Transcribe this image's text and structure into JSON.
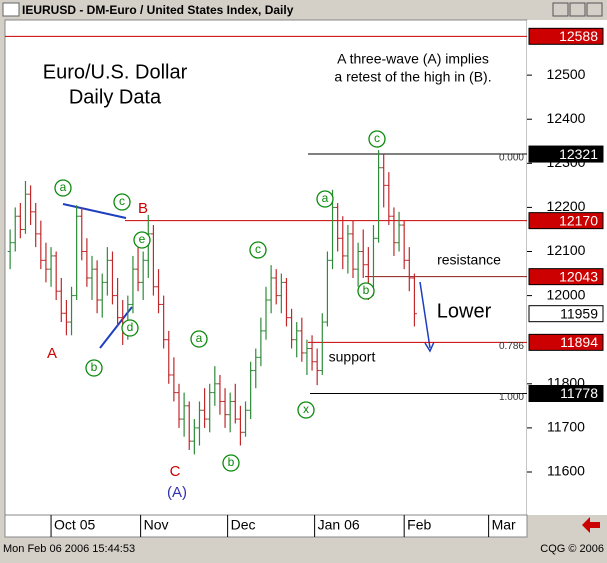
{
  "window": {
    "title": "IEURUSD - DM-Euro / United States Index, Daily",
    "status": "Mon Feb 06 2006 15:44:53",
    "copyright": "CQG © 2006"
  },
  "chart_data": {
    "type": "ohlc",
    "open": [
      12100,
      12120,
      12180,
      12150,
      12230,
      12190,
      12140,
      12080,
      12060,
      12090,
      12010,
      11960,
      11940,
      12000,
      12180,
      12100,
      12040,
      12060,
      11990,
      12030,
      12080,
      12000,
      11950,
      11920,
      11980,
      12060,
      12030,
      12080,
      12140,
      12020,
      11980,
      11900,
      11820,
      11780,
      11720,
      11750,
      11670,
      11700,
      11740,
      11720,
      11780,
      11800,
      11760,
      11730,
      11760,
      11720,
      11690,
      11740,
      11830,
      11860,
      11920,
      11990,
      12040,
      12000,
      12030,
      11950,
      11900,
      11920,
      11870,
      11880,
      11850,
      11830,
      11940,
      12080,
      12200,
      12130,
      12090,
      12140,
      12060,
      12100,
      12070,
      12020,
      12130,
      12290,
      12250,
      12180,
      12120,
      12160,
      12080,
      12040
    ],
    "high": [
      12150,
      12200,
      12210,
      12260,
      12250,
      12210,
      12170,
      12120,
      12110,
      12100,
      12040,
      11990,
      12020,
      12205,
      12200,
      12130,
      12090,
      12080,
      12050,
      12110,
      12100,
      12040,
      11990,
      12000,
      12090,
      12120,
      12100,
      12183,
      12160,
      12060,
      12000,
      11920,
      11860,
      11800,
      11780,
      11760,
      11720,
      11760,
      11790,
      11800,
      11840,
      11820,
      11790,
      11780,
      11800,
      11750,
      11760,
      11850,
      11880,
      11950,
      12020,
      12069,
      12060,
      12050,
      12040,
      11970,
      11940,
      11950,
      11900,
      11910,
      11880,
      11960,
      12100,
      12240,
      12210,
      12180,
      12160,
      12170,
      12120,
      12150,
      12110,
      12160,
      12330,
      12321,
      12280,
      12200,
      12190,
      12170,
      12110,
      12050
    ],
    "low": [
      12060,
      12100,
      12130,
      12140,
      12160,
      12110,
      12060,
      12030,
      12020,
      11990,
      11940,
      11910,
      11910,
      11990,
      12080,
      12020,
      11990,
      11960,
      11950,
      12000,
      11980,
      11930,
      11888,
      11900,
      11960,
      12010,
      11990,
      12040,
      12000,
      11960,
      11880,
      11800,
      11760,
      11700,
      11680,
      11650,
      11640,
      11660,
      11700,
      11690,
      11750,
      11730,
      11700,
      11690,
      11710,
      11660,
      11680,
      11720,
      11790,
      11840,
      11900,
      11960,
      11980,
      11960,
      11930,
      11880,
      11860,
      11850,
      11820,
      11830,
      11797,
      11820,
      11930,
      12060,
      12100,
      12060,
      12050,
      12040,
      12020,
      12040,
      11990,
      12000,
      12120,
      12200,
      12160,
      12090,
      12100,
      12060,
      12010,
      11930
    ],
    "close": [
      12120,
      12180,
      12150,
      12230,
      12190,
      12140,
      12080,
      12060,
      12090,
      12010,
      11960,
      11940,
      12000,
      12180,
      12100,
      12040,
      12060,
      11990,
      12030,
      12080,
      12000,
      11950,
      11920,
      11980,
      12060,
      12030,
      12080,
      12140,
      12020,
      11980,
      11900,
      11820,
      11780,
      11720,
      11750,
      11670,
      11700,
      11740,
      11720,
      11780,
      11800,
      11760,
      11730,
      11760,
      11720,
      11690,
      11740,
      11830,
      11860,
      11920,
      11990,
      12040,
      12000,
      12030,
      11950,
      11900,
      11920,
      11870,
      11880,
      11850,
      11830,
      11940,
      12080,
      12200,
      12130,
      12090,
      12140,
      12060,
      12100,
      12070,
      12020,
      12130,
      12290,
      12250,
      12180,
      12120,
      12160,
      12080,
      12040,
      11959
    ],
    "up_color": "#2e8b3a",
    "down_color": "#c0282a",
    "xlim": [
      -1,
      101
    ],
    "xticks": [
      {
        "value": 8,
        "label": "Oct 05"
      },
      {
        "value": 25.5,
        "label": "Nov"
      },
      {
        "value": 42.5,
        "label": "Dec"
      },
      {
        "value": 59.5,
        "label": "Jan 06"
      },
      {
        "value": 77,
        "label": "Feb"
      },
      {
        "value": 93.5,
        "label": "Mar"
      }
    ],
    "ylim": [
      11507,
      12625
    ],
    "yticks": [
      11600,
      11700,
      11800,
      12000,
      12100,
      12200,
      12300,
      12400,
      12500
    ],
    "levels": [
      {
        "value": 12588,
        "color": "#cc0000",
        "text_color": "#ffffff"
      },
      {
        "value": 12321,
        "color": "#000000",
        "text_color": "#ffffff",
        "fib": "0.000"
      },
      {
        "value": 12170,
        "color": "#cc0000",
        "text_color": "#ffffff"
      },
      {
        "value": 12043,
        "color": "#cc0000",
        "text_color": "#ffffff"
      },
      {
        "value": 11959,
        "color": "#ffffff",
        "text_color": "#000000"
      },
      {
        "value": 11894,
        "color": "#cc0000",
        "text_color": "#ffffff",
        "fib": "0.786"
      },
      {
        "value": 11778,
        "color": "#000000",
        "text_color": "#ffffff",
        "fib": "1.000"
      }
    ],
    "wave_labels": [
      {
        "text": "a",
        "style": "circle"
      },
      {
        "text": "c",
        "style": "circle"
      },
      {
        "text": "e",
        "style": "circle"
      },
      {
        "text": "d",
        "style": "circle"
      },
      {
        "text": "b",
        "style": "circle"
      },
      {
        "text": "A",
        "style": "red"
      },
      {
        "text": "B",
        "style": "red"
      },
      {
        "text": "C",
        "style": "red"
      },
      {
        "text": "(A)",
        "style": "blue"
      },
      {
        "text": "a",
        "style": "circle"
      },
      {
        "text": "b",
        "style": "circle"
      },
      {
        "text": "c",
        "style": "circle"
      },
      {
        "text": "x",
        "style": "circle"
      },
      {
        "text": "a",
        "style": "circle"
      },
      {
        "text": "b",
        "style": "circle"
      },
      {
        "text": "c",
        "style": "circle"
      }
    ],
    "notes": [
      "Euro/U.S. Dollar",
      "Daily Data",
      "A three-wave (A) implies",
      "a retest of the high in (B).",
      "resistance",
      "support",
      "Lower"
    ]
  }
}
